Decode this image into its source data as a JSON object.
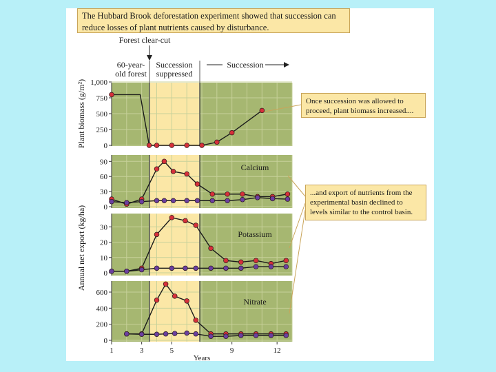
{
  "caption": "The Hubbard Brook deforestation experiment showed that succession can reduce losses of plant nutrients caused by disturbance.",
  "top_labels": {
    "clear_cut": "Forest clear-cut",
    "phase1": [
      "60-year-",
      "old forest"
    ],
    "phase2": [
      "Succession",
      "suppressed"
    ],
    "phase3": "Succession"
  },
  "callouts": {
    "biomass": "Once succession was allowed to proceed, plant biomass increased....",
    "export": "...and export of nutrients from the experimental basin declined to levels similar to the control basin."
  },
  "colors": {
    "green_panel": "#a6b771",
    "suppressed_band": "#fbe7a6",
    "experimental_marker": "#d6303a",
    "control_marker": "#6b3fa0"
  },
  "chart_data": [
    {
      "type": "line",
      "ylabel": "Plant biomass (g/m²)",
      "xlabel": "",
      "ylim": [
        0,
        1000
      ],
      "yticks": [
        "0",
        "250",
        "500",
        "750",
        "1,000"
      ],
      "xlim": [
        1,
        13
      ],
      "series": [
        {
          "x": [
            1,
            2.9,
            3.5,
            4,
            5,
            6,
            7,
            8,
            9,
            11
          ],
          "values": [
            800,
            800,
            0,
            0,
            0,
            0,
            0,
            50,
            200,
            550
          ]
        }
      ]
    },
    {
      "type": "line",
      "label": "Calcium",
      "ylim": [
        0,
        100
      ],
      "yticks": [
        "0",
        "30",
        "60",
        "90"
      ],
      "series": [
        {
          "role": "experimental",
          "x": [
            1,
            2,
            3,
            4,
            4.5,
            5.1,
            6,
            6.7,
            7.7,
            8.7,
            9.7,
            10.7,
            11.7,
            12.7
          ],
          "values": [
            15,
            5,
            15,
            75,
            90,
            70,
            65,
            45,
            25,
            25,
            25,
            20,
            20,
            25
          ]
        },
        {
          "role": "control",
          "x": [
            1,
            2,
            3,
            4,
            4.5,
            5.1,
            6,
            6.7,
            7.7,
            8.7,
            9.7,
            10.7,
            11.7,
            12.7
          ],
          "values": [
            10,
            8,
            10,
            12,
            12,
            12,
            12,
            12,
            12,
            12,
            14,
            18,
            16,
            15
          ]
        }
      ]
    },
    {
      "type": "line",
      "label": "Potassium",
      "ylim": [
        0,
        40
      ],
      "yticks": [
        "0",
        "10",
        "20",
        "30"
      ],
      "series": [
        {
          "role": "experimental",
          "x": [
            1,
            2,
            3,
            4,
            5,
            5.9,
            6.6,
            7.6,
            8.6,
            9.6,
            10.6,
            11.6,
            12.6
          ],
          "values": [
            1,
            1,
            3,
            25,
            36,
            34,
            31,
            16,
            8,
            7,
            8,
            6,
            8
          ]
        },
        {
          "role": "control",
          "x": [
            1,
            2,
            3,
            4,
            5,
            5.9,
            6.6,
            7.6,
            8.6,
            9.6,
            10.6,
            11.6,
            12.6
          ],
          "values": [
            1,
            1,
            2,
            3,
            3,
            3,
            3,
            3,
            3,
            3,
            4,
            4,
            4
          ]
        }
      ]
    },
    {
      "type": "line",
      "label": "Nitrate",
      "xlabel": "Years",
      "ylim": [
        0,
        720
      ],
      "yticks": [
        "0",
        "200",
        "400",
        "600"
      ],
      "xticks": [
        "1",
        "3",
        "5",
        "9",
        "12"
      ],
      "series": [
        {
          "role": "experimental",
          "x": [
            2,
            3,
            4,
            4.6,
            5.2,
            6,
            6.6,
            7.6,
            8.6,
            9.6,
            10.6,
            11.6,
            12.6
          ],
          "values": [
            80,
            80,
            500,
            700,
            550,
            490,
            250,
            80,
            80,
            80,
            80,
            80,
            80
          ]
        },
        {
          "role": "control",
          "x": [
            2,
            3,
            4,
            4.6,
            5.2,
            6,
            6.6,
            7.6,
            8.6,
            9.6,
            10.6,
            11.6,
            12.6
          ],
          "values": [
            80,
            75,
            75,
            80,
            85,
            90,
            80,
            50,
            50,
            60,
            60,
            60,
            60
          ]
        }
      ]
    }
  ]
}
